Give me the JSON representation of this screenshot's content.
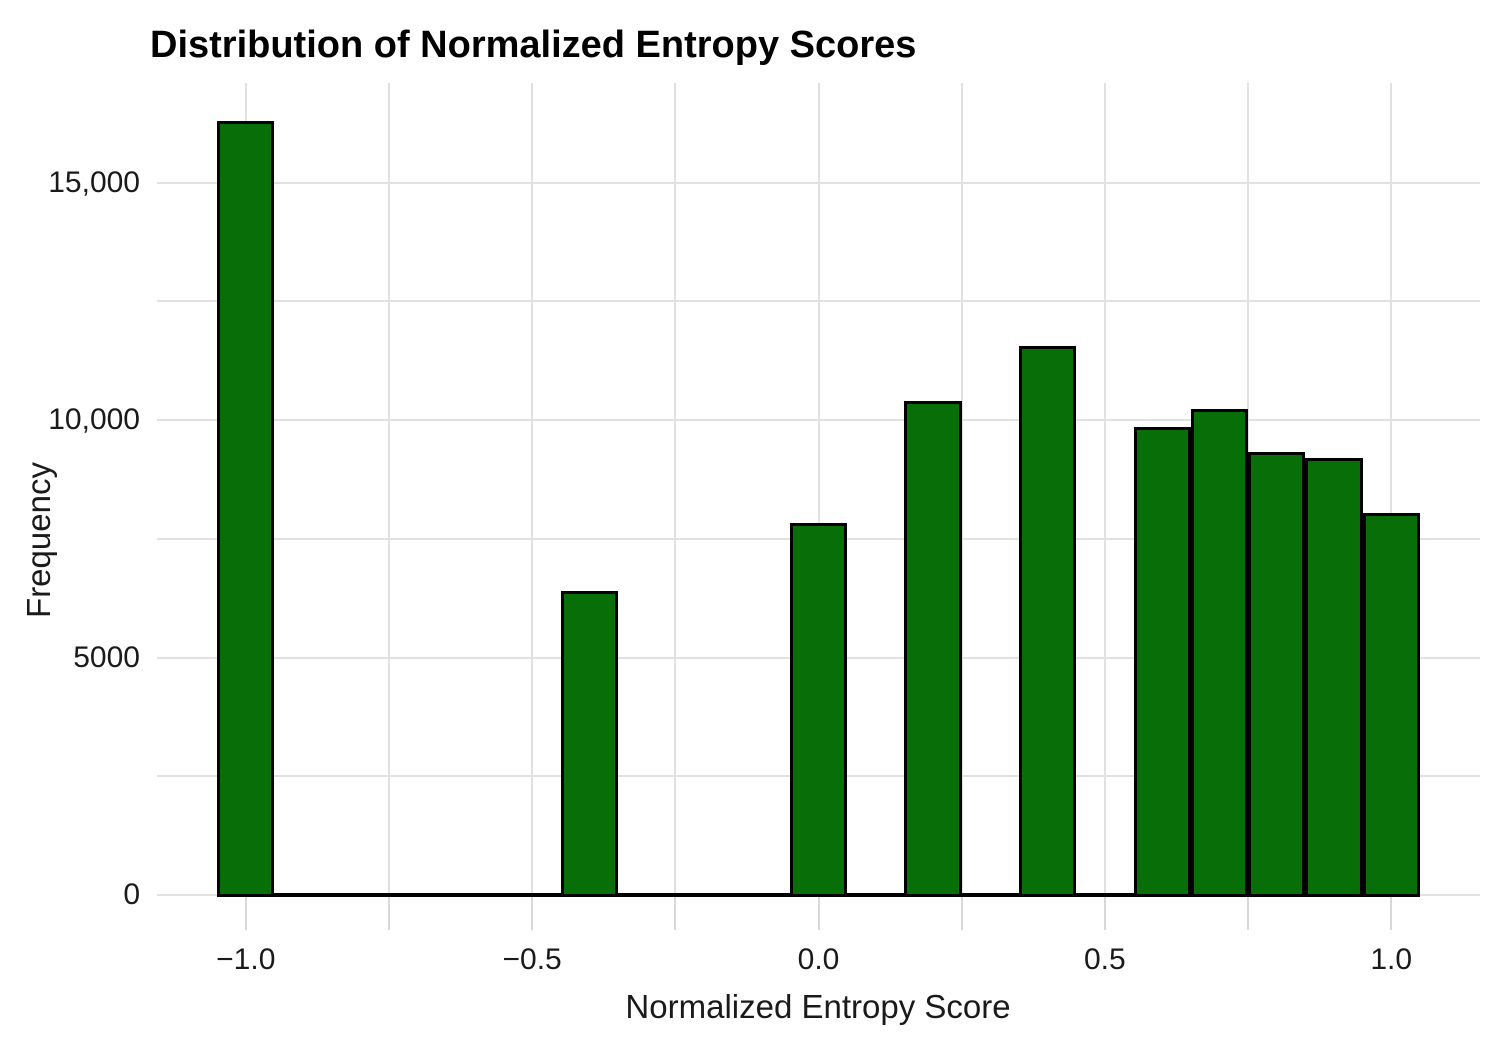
{
  "chart_data": {
    "type": "bar",
    "title": "Distribution of Normalized Entropy Scores",
    "xlabel": "Normalized Entropy Score",
    "ylabel": "Frequency",
    "bin_width": 0.1,
    "bins": [
      {
        "center": -1.0,
        "count": 16290
      },
      {
        "center": -0.4,
        "count": 6400
      },
      {
        "center": 0.0,
        "count": 7840
      },
      {
        "center": 0.2,
        "count": 10410
      },
      {
        "center": 0.4,
        "count": 11570
      },
      {
        "center": 0.6,
        "count": 9860
      },
      {
        "center": 0.7,
        "count": 10240
      },
      {
        "center": 0.8,
        "count": 9330
      },
      {
        "center": 0.9,
        "count": 9210
      },
      {
        "center": 1.0,
        "count": 8050
      }
    ],
    "zero_count_bin_range": [
      -1.05,
      1.05
    ],
    "x_tick_labels": [
      {
        "value": -1.0,
        "label": "−1.0"
      },
      {
        "value": -0.5,
        "label": "−0.5"
      },
      {
        "value": 0.0,
        "label": "0.0"
      },
      {
        "value": 0.5,
        "label": "0.5"
      },
      {
        "value": 1.0,
        "label": "1.0"
      }
    ],
    "y_tick_labels": [
      {
        "value": 0,
        "label": "0"
      },
      {
        "value": 5000,
        "label": "5000"
      },
      {
        "value": 10000,
        "label": "10,000"
      },
      {
        "value": 15000,
        "label": "15,000"
      }
    ],
    "x_grid_step": 0.25,
    "y_grid_step": 2500,
    "x_grid_range": [
      -1.0,
      1.0
    ],
    "y_grid_range": [
      0,
      15000
    ],
    "xlim": [
      -1.155,
      1.155
    ],
    "ylim": [
      0,
      17100
    ],
    "grid": true,
    "legend": null,
    "colors": {
      "bar_fill": "#086e08",
      "bar_edge": "#000000",
      "grid_line": "#e1e1e1",
      "tick_mark": "#d8d8d8",
      "text": "#1a1a1a",
      "background": "#ffffff"
    }
  }
}
